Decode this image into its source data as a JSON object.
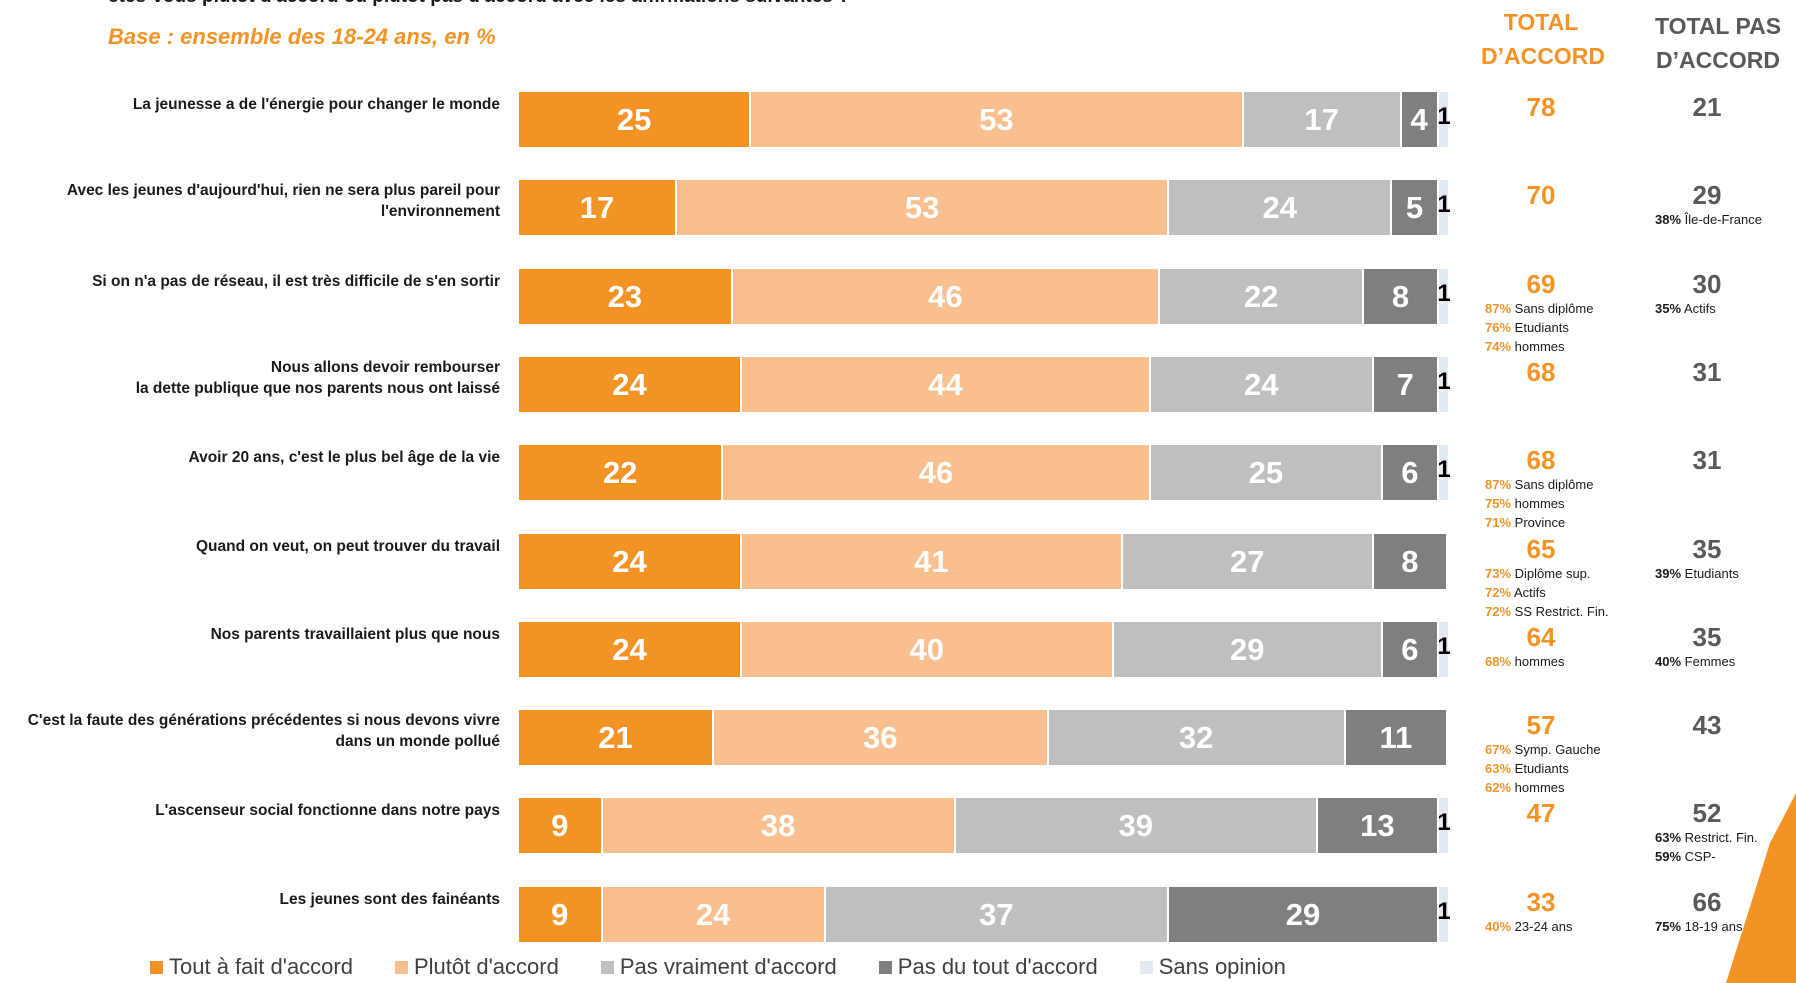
{
  "header": {
    "question_fragment": "êtes-vous plutôt d'accord ou plutôt pas d'accord avec les affirmations suivantes ?",
    "base": "Base : ensemble des 18-24 ans, en %",
    "col_total_accord": "TOTAL D’ACCORD",
    "col_total_pas_accord": "TOTAL PAS D’ACCORD"
  },
  "colors": {
    "tout_a_fait": "#f39325",
    "plutot": "#f9bf8f",
    "pas_vraiment": "#bfbfbf",
    "pas_du_tout": "#7f7f7f",
    "sans_opinion": "#e3e9f2",
    "accent": "#f39325"
  },
  "chart_data": {
    "type": "bar",
    "orientation": "horizontal-stacked-100",
    "xlim": [
      0,
      100
    ],
    "legend_position": "bottom",
    "categories": [
      "La jeunesse a de l'énergie pour changer le monde",
      "Avec les jeunes d'aujourd'hui, rien ne sera plus pareil pour l'environnement",
      "Si on n'a pas de réseau, il est très difficile de s'en sortir",
      "Nous allons devoir rembourser la dette publique que nos parents nous ont laissé",
      "Avoir 20 ans, c'est le plus bel âge de la vie",
      "Quand on veut, on peut trouver du travail",
      "Nos parents travaillaient plus que nous",
      "C'est la faute des générations précédentes si nous devons vivre dans un monde pollué",
      "L'ascenseur social fonctionne dans notre pays",
      "Les jeunes sont des fainéants"
    ],
    "series": [
      {
        "name": "Tout à fait d'accord",
        "values": [
          25,
          17,
          23,
          24,
          22,
          24,
          24,
          21,
          9,
          9
        ]
      },
      {
        "name": "Plutôt d'accord",
        "values": [
          53,
          53,
          46,
          44,
          46,
          41,
          40,
          36,
          38,
          24
        ]
      },
      {
        "name": "Pas vraiment d'accord",
        "values": [
          17,
          24,
          22,
          24,
          25,
          27,
          29,
          32,
          39,
          37
        ]
      },
      {
        "name": "Pas du tout d'accord",
        "values": [
          4,
          5,
          8,
          7,
          6,
          8,
          6,
          11,
          13,
          29
        ]
      },
      {
        "name": "Sans opinion",
        "values": [
          1,
          1,
          1,
          1,
          1,
          null,
          1,
          null,
          1,
          1
        ]
      }
    ],
    "total_accord": [
      78,
      70,
      69,
      68,
      68,
      65,
      64,
      57,
      47,
      33
    ],
    "total_pas_accord": [
      21,
      29,
      30,
      31,
      31,
      35,
      35,
      43,
      52,
      66
    ],
    "subgroups_accord": [
      [],
      [],
      [
        {
          "pct": "87%",
          "label": "Sans diplôme"
        },
        {
          "pct": "76%",
          "label": "Etudiants"
        },
        {
          "pct": "74%",
          "label": "hommes"
        }
      ],
      [],
      [
        {
          "pct": "87%",
          "label": "Sans diplôme"
        },
        {
          "pct": "75%",
          "label": "hommes"
        },
        {
          "pct": "71%",
          "label": "Province"
        }
      ],
      [
        {
          "pct": "73%",
          "label": "Diplôme sup."
        },
        {
          "pct": "72%",
          "label": "Actifs"
        },
        {
          "pct": "72%",
          "label": "SS Restrict. Fin."
        }
      ],
      [
        {
          "pct": "68%",
          "label": "hommes"
        }
      ],
      [
        {
          "pct": "67%",
          "label": "Symp. Gauche"
        },
        {
          "pct": "63%",
          "label": "Etudiants"
        },
        {
          "pct": "62%",
          "label": "hommes"
        }
      ],
      [],
      [
        {
          "pct": "40%",
          "label": "23-24 ans"
        }
      ]
    ],
    "subgroups_pas_accord": [
      [],
      [
        {
          "pct": "38%",
          "label": "Île-de-France"
        }
      ],
      [
        {
          "pct": "35%",
          "label": "Actifs"
        }
      ],
      [],
      [],
      [
        {
          "pct": "39%",
          "label": "Etudiants"
        }
      ],
      [
        {
          "pct": "40%",
          "label": "Femmes"
        }
      ],
      [],
      [
        {
          "pct": "63%",
          "label": "Restrict. Fin."
        },
        {
          "pct": "59%",
          "label": "CSP-"
        }
      ],
      [
        {
          "pct": "75%",
          "label": "18-19 ans"
        }
      ]
    ]
  }
}
